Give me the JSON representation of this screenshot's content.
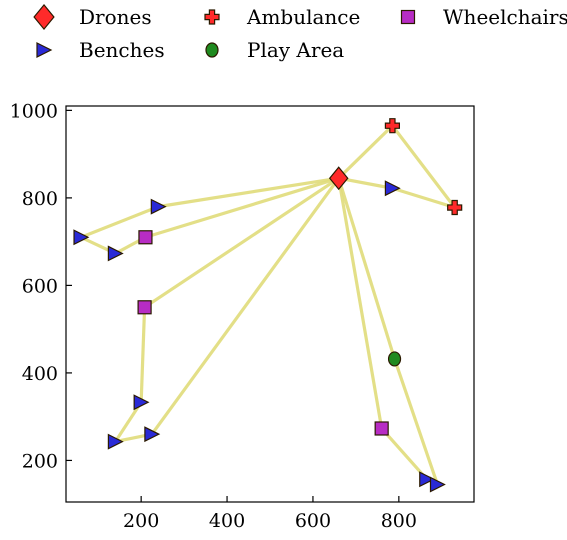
{
  "chart_data": {
    "type": "scatter",
    "title": "",
    "xlabel": "",
    "ylabel": "",
    "xlim": [
      25,
      975
    ],
    "ylim": [
      105,
      1010
    ],
    "xticks": [
      200,
      400,
      600,
      800
    ],
    "yticks": [
      200,
      400,
      600,
      800,
      1000
    ],
    "grid": false,
    "legend_position": "top",
    "series": [
      {
        "name": "Drones",
        "marker": "diamond",
        "color": "#ff2a2a",
        "points": [
          [
            660,
            845
          ]
        ]
      },
      {
        "name": "Ambulance",
        "marker": "plus",
        "color": "#ff2a2a",
        "points": [
          [
            785,
            965
          ],
          [
            930,
            778
          ]
        ]
      },
      {
        "name": "Wheelchairs",
        "marker": "square",
        "color": "#b72cc4",
        "points": [
          [
            210,
            710
          ],
          [
            208,
            550
          ],
          [
            760,
            273
          ]
        ]
      },
      {
        "name": "Benches",
        "marker": "triangle-right",
        "color": "#2a2ad6",
        "points": [
          [
            240,
            780
          ],
          [
            60,
            710
          ],
          [
            140,
            673
          ],
          [
            785,
            822
          ],
          [
            200,
            333
          ],
          [
            140,
            243
          ],
          [
            225,
            260
          ],
          [
            865,
            157
          ],
          [
            890,
            145
          ]
        ]
      },
      {
        "name": "Play Area",
        "marker": "circle",
        "color": "#1f8a1f",
        "points": [
          [
            790,
            432
          ]
        ]
      }
    ],
    "connections": {
      "color": "#e0dc7a",
      "segments": [
        [
          [
            660,
            845
          ],
          [
            785,
            965
          ]
        ],
        [
          [
            785,
            965
          ],
          [
            930,
            778
          ]
        ],
        [
          [
            930,
            778
          ],
          [
            785,
            822
          ]
        ],
        [
          [
            785,
            822
          ],
          [
            660,
            845
          ]
        ],
        [
          [
            660,
            845
          ],
          [
            240,
            780
          ]
        ],
        [
          [
            240,
            780
          ],
          [
            60,
            710
          ]
        ],
        [
          [
            60,
            710
          ],
          [
            140,
            673
          ]
        ],
        [
          [
            140,
            673
          ],
          [
            210,
            710
          ]
        ],
        [
          [
            210,
            710
          ],
          [
            660,
            845
          ]
        ],
        [
          [
            660,
            845
          ],
          [
            208,
            550
          ]
        ],
        [
          [
            208,
            550
          ],
          [
            200,
            333
          ]
        ],
        [
          [
            200,
            333
          ],
          [
            140,
            243
          ]
        ],
        [
          [
            140,
            243
          ],
          [
            225,
            260
          ]
        ],
        [
          [
            225,
            260
          ],
          [
            660,
            845
          ]
        ],
        [
          [
            660,
            845
          ],
          [
            760,
            273
          ]
        ],
        [
          [
            760,
            273
          ],
          [
            865,
            157
          ]
        ],
        [
          [
            865,
            157
          ],
          [
            890,
            145
          ]
        ],
        [
          [
            890,
            145
          ],
          [
            790,
            432
          ]
        ],
        [
          [
            790,
            432
          ],
          [
            660,
            845
          ]
        ]
      ]
    },
    "legend": [
      {
        "label": "Drones",
        "marker": "diamond",
        "color": "#ff2a2a"
      },
      {
        "label": "Ambulance",
        "marker": "plus",
        "color": "#ff2a2a"
      },
      {
        "label": "Wheelchairs",
        "marker": "square",
        "color": "#b72cc4"
      },
      {
        "label": "Benches",
        "marker": "triangle-right",
        "color": "#2a2ad6"
      },
      {
        "label": "Play Area",
        "marker": "circle",
        "color": "#1f8a1f"
      }
    ]
  }
}
